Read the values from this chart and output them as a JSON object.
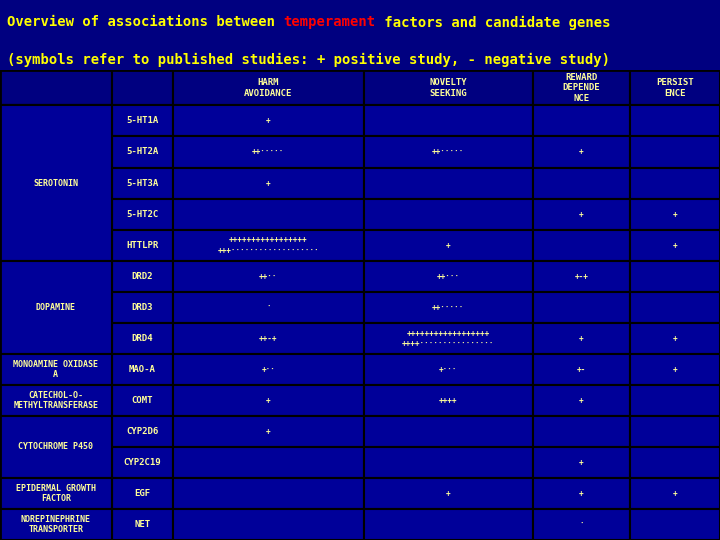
{
  "title_parts": [
    {
      "text": "Overview of associations between ",
      "color": "#FFFF00"
    },
    {
      "text": "temperament",
      "color": "#FF0000"
    },
    {
      "text": " factors and candidate genes",
      "color": "#FFFF00"
    }
  ],
  "subtitle": "(symbols refer to published studies: + positive study, - negative study)",
  "bg_color": "#000080",
  "header_bg": "#000080",
  "cell_bg": "#000099",
  "border_color": "#000000",
  "text_color": "#FFFF99",
  "header_text_color": "#FFFF99",
  "col_headers": [
    "",
    "",
    "HARM\nAVOIDANCE",
    "NOVELTY\nSEEKING",
    "REWARD\nDEPENDE\nNCE",
    "PERSIST\nENCE"
  ],
  "rows": [
    {
      "neurotransmitter": "SEROTONIN",
      "gene": "5-HT1A",
      "harm": "+",
      "novelty": "",
      "reward": "",
      "persist": ""
    },
    {
      "neurotransmitter": "",
      "gene": "5-HT2A",
      "harm": "++·····",
      "novelty": "++·····",
      "reward": "+",
      "persist": ""
    },
    {
      "neurotransmitter": "",
      "gene": "5-HT3A",
      "harm": "+",
      "novelty": "",
      "reward": "",
      "persist": ""
    },
    {
      "neurotransmitter": "",
      "gene": "5-HT2C",
      "harm": "",
      "novelty": "",
      "reward": "+",
      "persist": "+"
    },
    {
      "neurotransmitter": "",
      "gene": "HTTLPR",
      "harm": "+++++++++++++++++\n+++···················",
      "novelty": "+",
      "reward": "",
      "persist": "+"
    },
    {
      "neurotransmitter": "DOPAMINE",
      "gene": "DRD2",
      "harm": "++··",
      "novelty": "++···",
      "reward": "+-+",
      "persist": ""
    },
    {
      "neurotransmitter": "",
      "gene": "DRD3",
      "harm": "·",
      "novelty": "++·····",
      "reward": "",
      "persist": ""
    },
    {
      "neurotransmitter": "",
      "gene": "DRD4",
      "harm": "++-+",
      "novelty": "++++++++++++++++++\n++++················",
      "reward": "+",
      "persist": "+"
    },
    {
      "neurotransmitter": "MONOAMINE OXIDASE\nA",
      "gene": "MAO-A",
      "harm": "+··",
      "novelty": "+···",
      "reward": "+-",
      "persist": "+"
    },
    {
      "neurotransmitter": "CATECHOL-O-\nMETHYLTRANSFERASE",
      "gene": "COMT",
      "harm": "+",
      "novelty": "++++",
      "reward": "+",
      "persist": ""
    },
    {
      "neurotransmitter": "CYTOCHROME P450",
      "gene": "CYP2D6",
      "harm": "+",
      "novelty": "",
      "reward": "",
      "persist": ""
    },
    {
      "neurotransmitter": "",
      "gene": "CYP2C19",
      "harm": "",
      "novelty": "",
      "reward": "+",
      "persist": ""
    },
    {
      "neurotransmitter": "EPIDERMAL GROWTH\nFACTOR",
      "gene": "EGF",
      "harm": "",
      "novelty": "+",
      "reward": "+",
      "persist": "+"
    },
    {
      "neurotransmitter": "NOREPINEPHRINE\nTRANSPORTER",
      "gene": "NET",
      "harm": "",
      "novelty": "",
      "reward": "·",
      "persist": ""
    }
  ]
}
